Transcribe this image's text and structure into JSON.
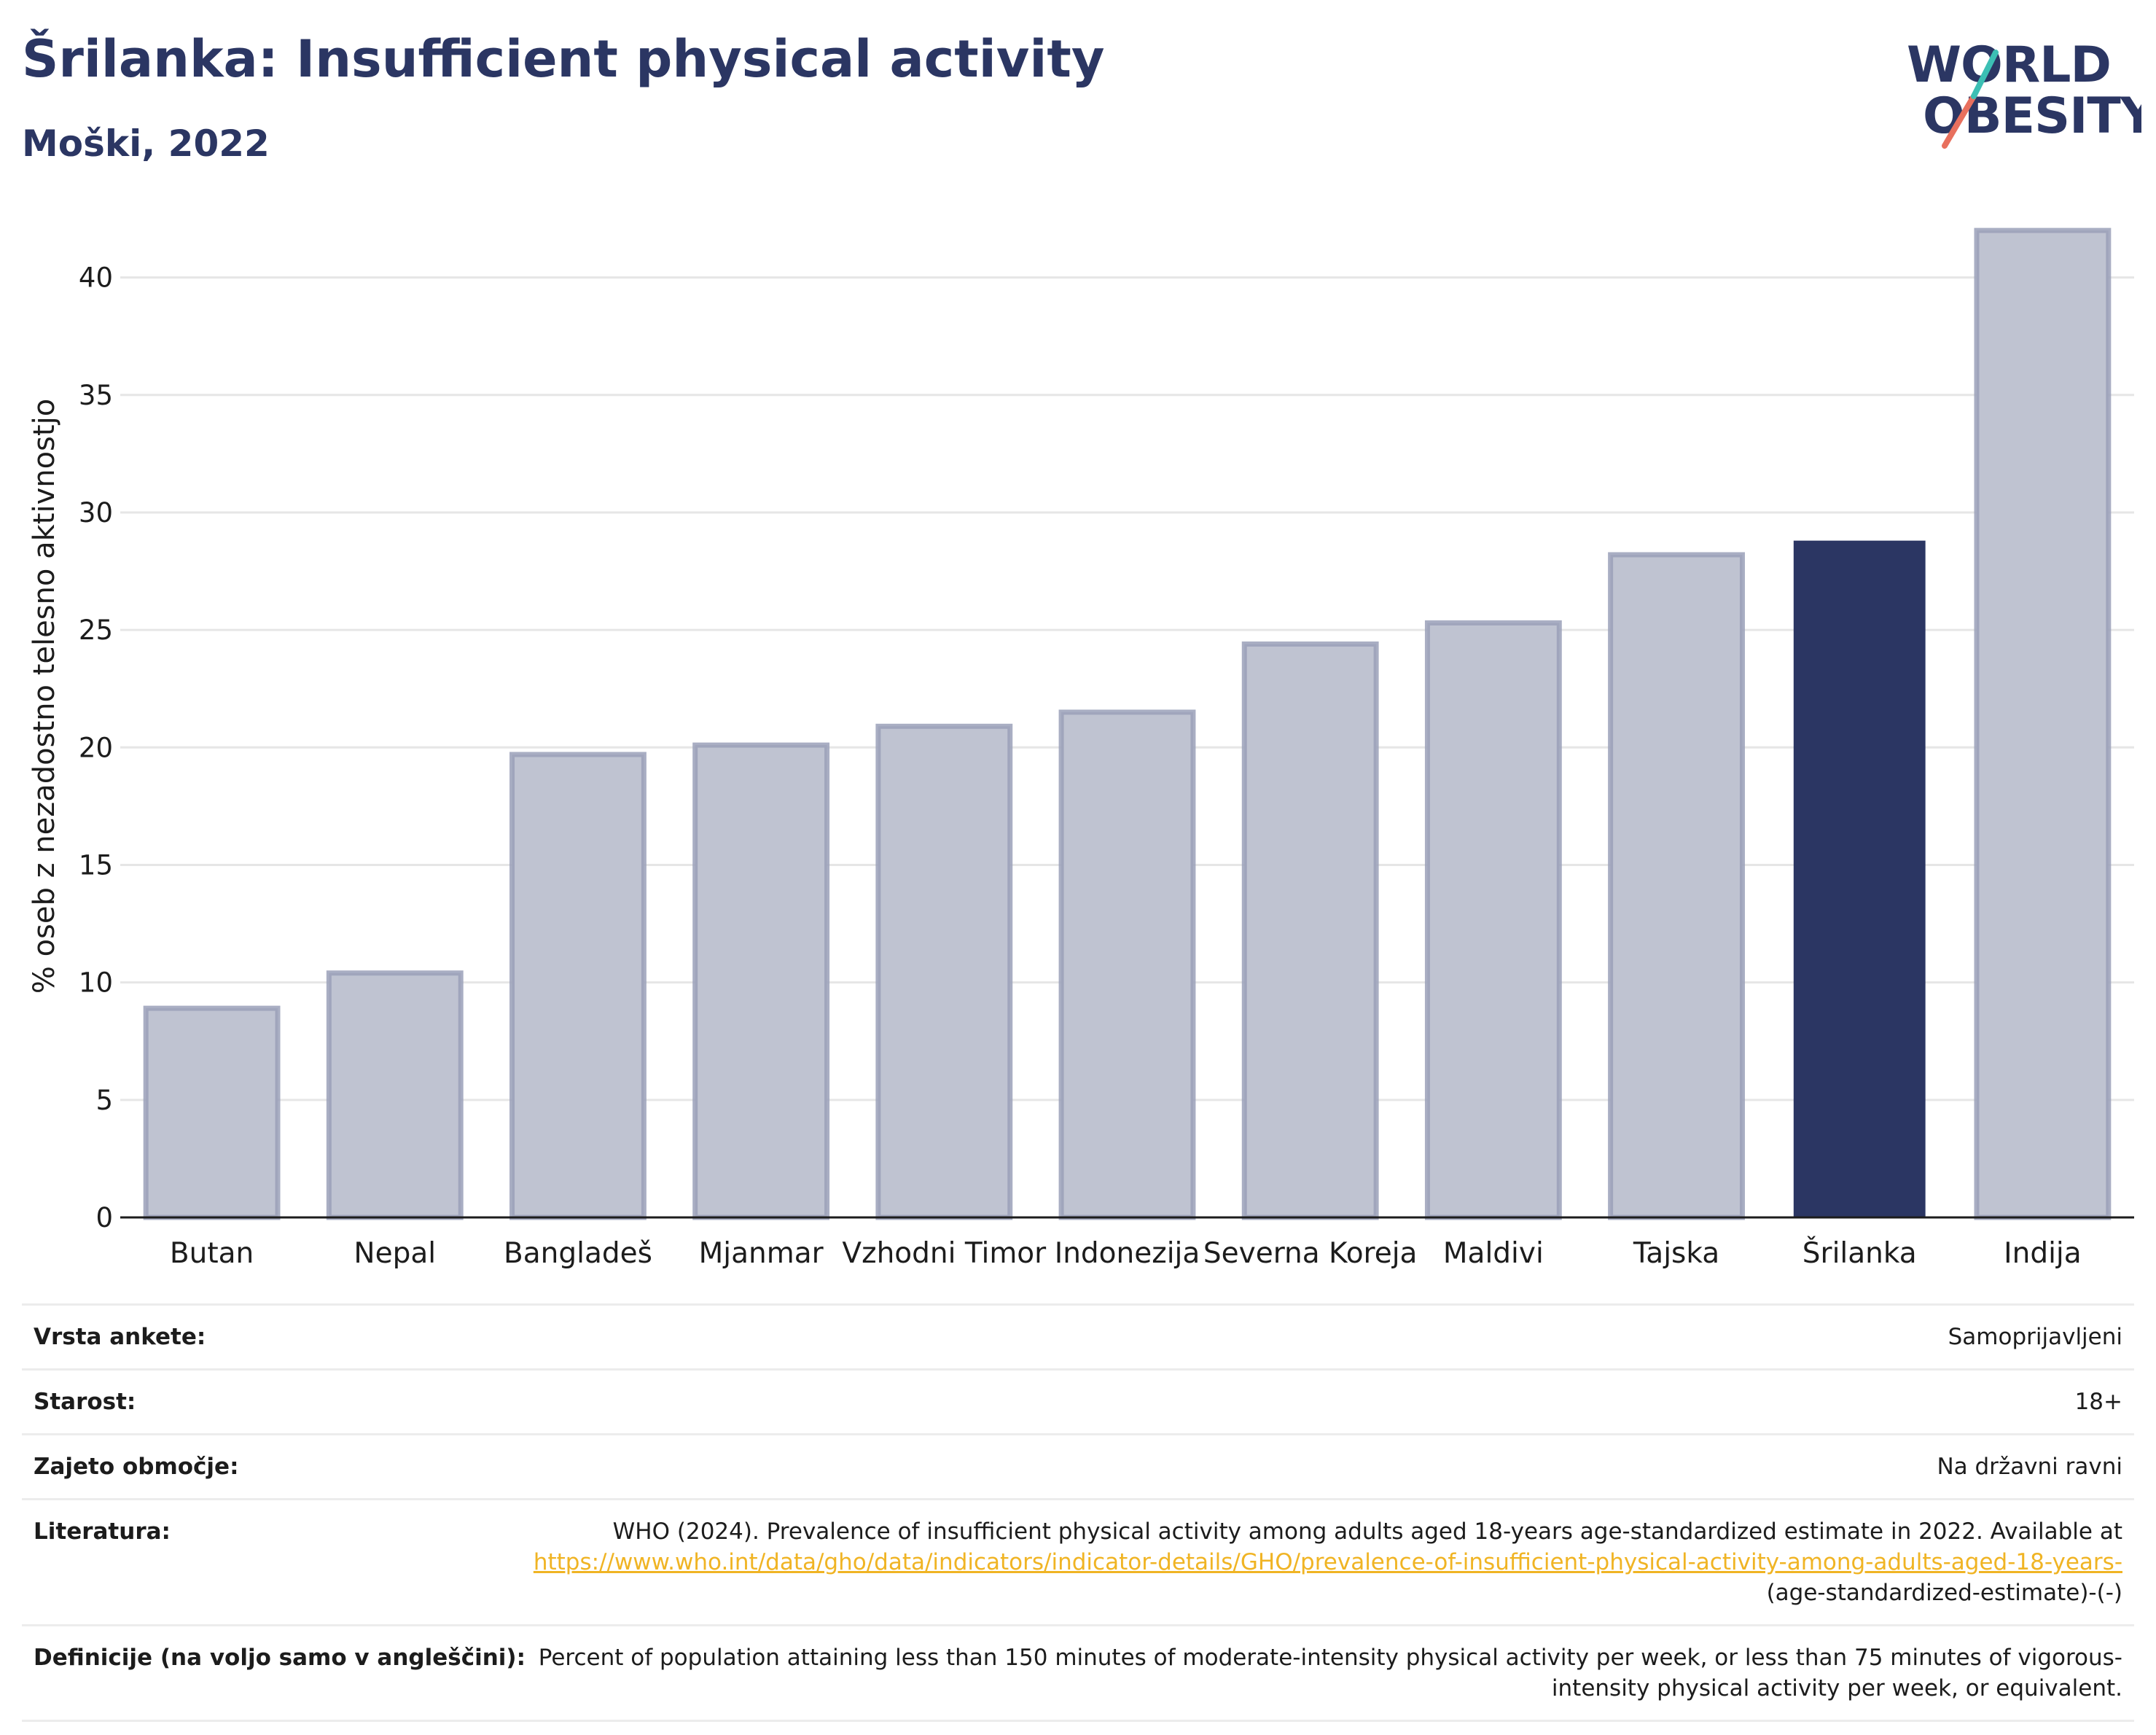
{
  "header": {
    "title": "Šrilanka: Insufficient physical activity",
    "subtitle": "Moški, 2022",
    "logo_line1": "WORLD",
    "logo_line2": "OBESITY"
  },
  "colors": {
    "highlight": "#2b3663",
    "bar": "#bfc3d1",
    "bar_border": "#9aa0b8",
    "grid": "#e6e6e6",
    "link": "#f0b424",
    "logo_teal": "#3cbfb4",
    "logo_coral": "#e8705e"
  },
  "chart_data": {
    "type": "bar",
    "ylabel": "% oseb z nezadostno telesno aktivnostjo",
    "ylim": [
      0,
      42.5
    ],
    "yticks": [
      0,
      5,
      10,
      15,
      20,
      25,
      30,
      35,
      40
    ],
    "grid": true,
    "categories": [
      "Butan",
      "Nepal",
      "Bangladeš",
      "Mjanmar",
      "Vzhodni Timor",
      "Indonezija",
      "Severna Koreja",
      "Maldivi",
      "Tajska",
      "Šrilanka",
      "Indija"
    ],
    "values": [
      8.9,
      10.4,
      19.7,
      20.1,
      20.9,
      21.5,
      24.4,
      25.3,
      28.2,
      28.8,
      42.0
    ],
    "highlight": "Šrilanka"
  },
  "meta": {
    "rows": [
      {
        "key": "Vrsta ankete:",
        "value": "Samoprijavljeni"
      },
      {
        "key": "Starost:",
        "value": "18+"
      },
      {
        "key": "Zajeto območje:",
        "value": "Na državni ravni"
      }
    ],
    "literature_key": "Literatura:",
    "literature_text": "WHO (2024). Prevalence of insufficient physical activity among adults aged 18-years age-standardized estimate in 2022. Available at ",
    "literature_link": "https://www.who.int/data/gho/data/indicators/indicator-details/GHO/prevalence-of-insufficient-physical-activity-among-adults-aged-18-years-",
    "literature_tail": "(age-standardized-estimate)-(-)",
    "definition_key": "Definicije (na voljo samo v angleščini):",
    "definition_value": "Percent of population attaining less than 150 minutes of moderate-intensity physical activity per week, or less than 75 minutes of vigorous-intensity physical activity per week, or equivalent."
  }
}
